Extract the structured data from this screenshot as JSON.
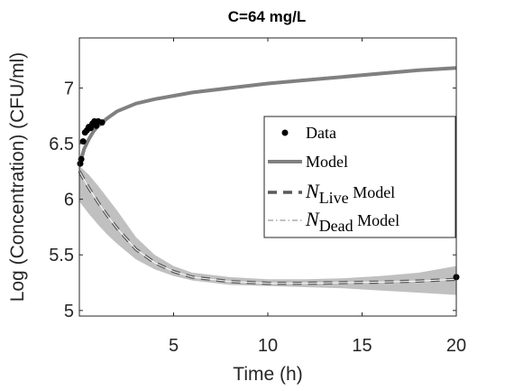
{
  "chart_data": {
    "type": "line",
    "title": "C=64 mg/L",
    "xlabel": "Time (h)",
    "ylabel": "Log (Concentration) (CFU/ml)",
    "xlim": [
      0,
      20
    ],
    "ylim": [
      4.95,
      7.45
    ],
    "xticks": [
      5,
      10,
      15,
      20
    ],
    "xtick_labels": [
      "5",
      "10",
      "15",
      "20"
    ],
    "yticks": [
      5,
      5.5,
      6,
      6.5,
      7
    ],
    "ytick_labels": [
      "5",
      "5.5",
      "6",
      "6.5",
      "7"
    ],
    "grid": false,
    "legend_position": "right",
    "colors": {
      "data": "#000000",
      "model": "#808080",
      "live": "#595959",
      "dead": "#808080",
      "band": "#c0c0c0",
      "live_center": "#ffffff"
    },
    "series": [
      {
        "name": "Data",
        "kind": "scatter",
        "x": [
          0.05,
          0.1,
          0.2,
          0.3,
          0.4,
          0.5,
          0.6,
          0.7,
          0.8,
          0.9,
          1.0,
          1.2,
          20.0
        ],
        "y": [
          6.32,
          6.36,
          6.52,
          6.6,
          6.62,
          6.65,
          6.64,
          6.68,
          6.7,
          6.66,
          6.7,
          6.69,
          5.3
        ]
      },
      {
        "name": "Model",
        "kind": "line",
        "x": [
          0,
          0.1,
          0.25,
          0.5,
          0.75,
          1,
          1.5,
          2,
          3,
          4,
          5,
          6,
          8,
          10,
          12,
          14,
          16,
          18,
          20
        ],
        "y": [
          6.3,
          6.36,
          6.45,
          6.54,
          6.61,
          6.66,
          6.73,
          6.79,
          6.86,
          6.9,
          6.93,
          6.96,
          7.0,
          7.04,
          7.07,
          7.1,
          7.13,
          7.16,
          7.18
        ]
      },
      {
        "name": "Live Model",
        "kind": "line",
        "x": [
          0,
          0.5,
          1,
          1.5,
          2,
          3,
          4,
          5,
          6,
          8,
          10,
          12,
          14,
          16,
          18,
          20
        ],
        "y": [
          6.25,
          6.1,
          5.97,
          5.85,
          5.74,
          5.55,
          5.43,
          5.35,
          5.3,
          5.26,
          5.245,
          5.245,
          5.25,
          5.255,
          5.265,
          5.28
        ],
        "band_lower": [
          5.98,
          5.87,
          5.77,
          5.68,
          5.6,
          5.46,
          5.37,
          5.31,
          5.27,
          5.23,
          5.22,
          5.21,
          5.2,
          5.18,
          5.16,
          5.14
        ],
        "band_upper": [
          6.3,
          6.22,
          6.12,
          6.01,
          5.9,
          5.66,
          5.5,
          5.4,
          5.34,
          5.3,
          5.28,
          5.28,
          5.29,
          5.31,
          5.34,
          5.4
        ]
      },
      {
        "name": "Dead Model",
        "kind": "line",
        "x": [
          0,
          0.1,
          0.25,
          0.5,
          0.75,
          1,
          1.5,
          2,
          3,
          4,
          5,
          6,
          8,
          10,
          12,
          14,
          16,
          18,
          20
        ],
        "y": [
          6.3,
          6.38,
          6.47,
          6.55,
          6.61,
          6.65,
          6.72,
          6.78,
          6.85,
          6.89,
          6.92,
          6.95,
          6.99,
          7.03,
          7.06,
          7.09,
          7.12,
          7.15,
          7.17
        ]
      }
    ],
    "legend": {
      "entries": [
        {
          "label": "Data"
        },
        {
          "label": "Model"
        },
        {
          "label_main": "N",
          "label_sub": "Live",
          "label_suffix": " Model"
        },
        {
          "label_main": "N",
          "label_sub": "Dead",
          "label_suffix": " Model"
        }
      ]
    }
  }
}
